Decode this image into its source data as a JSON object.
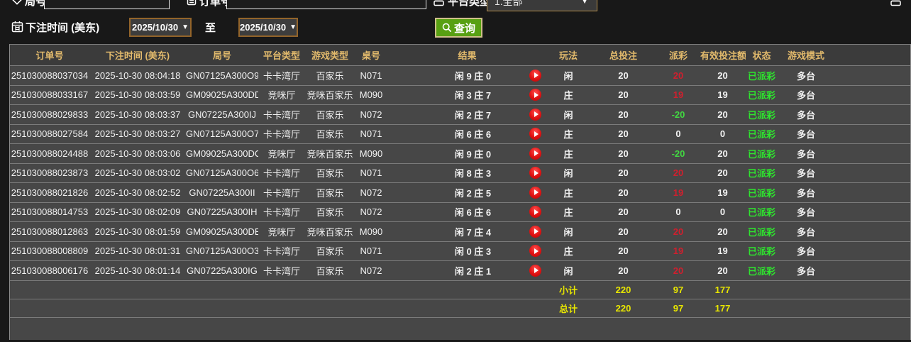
{
  "form": {
    "round": {
      "label": "局号",
      "value": ""
    },
    "order": {
      "label": "订单号",
      "value": ""
    },
    "platform": {
      "label": "平台类型",
      "value": "1.全部"
    },
    "bet_time": {
      "label": "下注时间 (美东)",
      "from": "2025/10/30",
      "to_separator": "至",
      "to": "2025/10/30"
    },
    "query_button": "查询"
  },
  "colors": {
    "header_text": "#e2ba6c",
    "payout_positive": "#d01f2e",
    "payout_negative": "#42d742",
    "status_paid": "#2ee52e",
    "footer_total": "#e8e600",
    "query_button_bg": "#58a012"
  },
  "table": {
    "headers": [
      "订单号",
      "下注时间 (美东)",
      "局号",
      "平台类型",
      "游戏类型",
      "桌号",
      "结果",
      "玩法",
      "总投注",
      "派彩",
      "有效投注额",
      "状态",
      "游戏模式"
    ],
    "rows": [
      {
        "order_id": "251030088037034",
        "bet_time": "2025-10-30 08:04:18",
        "round_id": "GN07125A300O9",
        "platform": "卡卡湾厅",
        "game_type": "百家乐",
        "table_no": "N071",
        "result": "闲 9 庄 0",
        "play": "闲",
        "total_bet": "20",
        "payout": "20",
        "valid_bet": "20",
        "status": "已派彩",
        "game_mode": "多台"
      },
      {
        "order_id": "251030088033167",
        "bet_time": "2025-10-30 08:03:59",
        "round_id": "GM09025A300DD",
        "platform": "竞咪厅",
        "game_type": "竞咪百家乐",
        "table_no": "M090",
        "result": "闲 3 庄 7",
        "play": "庄",
        "total_bet": "20",
        "payout": "19",
        "valid_bet": "19",
        "status": "已派彩",
        "game_mode": "多台"
      },
      {
        "order_id": "251030088029833",
        "bet_time": "2025-10-30 08:03:37",
        "round_id": "GN07225A300IJ",
        "platform": "卡卡湾厅",
        "game_type": "百家乐",
        "table_no": "N072",
        "result": "闲 2 庄 7",
        "play": "闲",
        "total_bet": "20",
        "payout": "-20",
        "valid_bet": "20",
        "status": "已派彩",
        "game_mode": "多台"
      },
      {
        "order_id": "251030088027584",
        "bet_time": "2025-10-30 08:03:27",
        "round_id": "GN07125A300O7",
        "platform": "卡卡湾厅",
        "game_type": "百家乐",
        "table_no": "N071",
        "result": "闲 6 庄 6",
        "play": "庄",
        "total_bet": "20",
        "payout": "0",
        "valid_bet": "0",
        "status": "已派彩",
        "game_mode": "多台"
      },
      {
        "order_id": "251030088024488",
        "bet_time": "2025-10-30 08:03:06",
        "round_id": "GM09025A300DC",
        "platform": "竞咪厅",
        "game_type": "竞咪百家乐",
        "table_no": "M090",
        "result": "闲 9 庄 0",
        "play": "庄",
        "total_bet": "20",
        "payout": "-20",
        "valid_bet": "20",
        "status": "已派彩",
        "game_mode": "多台"
      },
      {
        "order_id": "251030088023873",
        "bet_time": "2025-10-30 08:03:02",
        "round_id": "GN07125A300O6",
        "platform": "卡卡湾厅",
        "game_type": "百家乐",
        "table_no": "N071",
        "result": "闲 8 庄 3",
        "play": "闲",
        "total_bet": "20",
        "payout": "20",
        "valid_bet": "20",
        "status": "已派彩",
        "game_mode": "多台"
      },
      {
        "order_id": "251030088021826",
        "bet_time": "2025-10-30 08:02:52",
        "round_id": "GN07225A300II",
        "platform": "卡卡湾厅",
        "game_type": "百家乐",
        "table_no": "N072",
        "result": "闲 2 庄 5",
        "play": "庄",
        "total_bet": "20",
        "payout": "19",
        "valid_bet": "19",
        "status": "已派彩",
        "game_mode": "多台"
      },
      {
        "order_id": "251030088014753",
        "bet_time": "2025-10-30 08:02:09",
        "round_id": "GN07225A300IH",
        "platform": "卡卡湾厅",
        "game_type": "百家乐",
        "table_no": "N072",
        "result": "闲 6 庄 6",
        "play": "庄",
        "total_bet": "20",
        "payout": "0",
        "valid_bet": "0",
        "status": "已派彩",
        "game_mode": "多台"
      },
      {
        "order_id": "251030088012863",
        "bet_time": "2025-10-30 08:01:59",
        "round_id": "GM09025A300DB",
        "platform": "竞咪厅",
        "game_type": "竞咪百家乐",
        "table_no": "M090",
        "result": "闲 7 庄 4",
        "play": "闲",
        "total_bet": "20",
        "payout": "20",
        "valid_bet": "20",
        "status": "已派彩",
        "game_mode": "多台"
      },
      {
        "order_id": "251030088008809",
        "bet_time": "2025-10-30 08:01:31",
        "round_id": "GN07125A300O3",
        "platform": "卡卡湾厅",
        "game_type": "百家乐",
        "table_no": "N071",
        "result": "闲 0 庄 3",
        "play": "庄",
        "total_bet": "20",
        "payout": "19",
        "valid_bet": "19",
        "status": "已派彩",
        "game_mode": "多台"
      },
      {
        "order_id": "251030088006176",
        "bet_time": "2025-10-30 08:01:14",
        "round_id": "GN07225A300IG",
        "platform": "卡卡湾厅",
        "game_type": "百家乐",
        "table_no": "N072",
        "result": "闲 2 庄 1",
        "play": "闲",
        "total_bet": "20",
        "payout": "20",
        "valid_bet": "20",
        "status": "已派彩",
        "game_mode": "多台"
      }
    ],
    "footer": {
      "subtotal_label": "小计",
      "total_label": "总计",
      "subtotal": {
        "total_bet": "220",
        "payout": "97",
        "valid_bet": "177"
      },
      "total": {
        "total_bet": "220",
        "payout": "97",
        "valid_bet": "177"
      }
    }
  }
}
